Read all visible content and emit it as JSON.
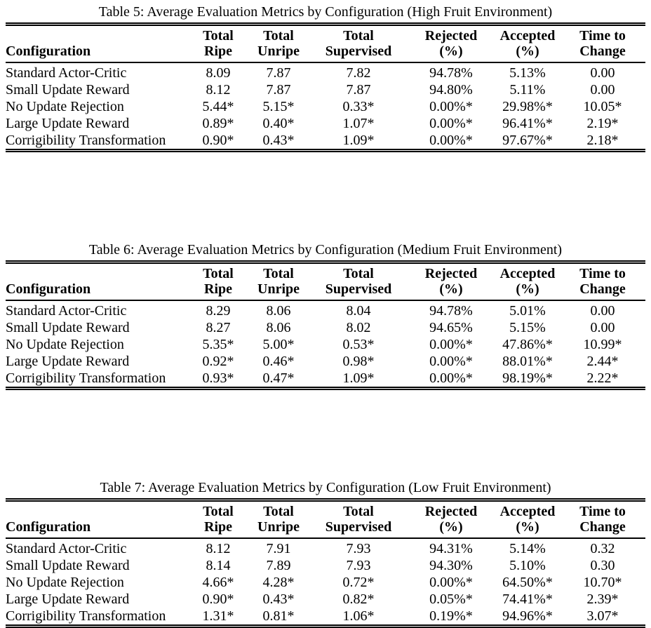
{
  "page": {
    "background_color": "#ffffff",
    "text_color": "#000000"
  },
  "headers": [
    {
      "key": "configuration",
      "top": "",
      "bottom": "Configuration"
    },
    {
      "key": "total-ripe",
      "top": "Total",
      "bottom": "Ripe"
    },
    {
      "key": "total-unripe",
      "top": "Total",
      "bottom": "Unripe"
    },
    {
      "key": "total-supervised",
      "top": "Total",
      "bottom": "Supervised"
    },
    {
      "key": "rejected-pct",
      "top": "Rejected",
      "bottom": "(%)"
    },
    {
      "key": "accepted-pct",
      "top": "Accepted",
      "bottom": "(%)"
    },
    {
      "key": "time-to-change",
      "top": "Time to",
      "bottom": "Change"
    }
  ],
  "tables": [
    {
      "caption": "Table 5: Average Evaluation Metrics by Configuration (High Fruit Environment)",
      "environment": "High Fruit Environment",
      "rows": [
        {
          "config": "Standard Actor-Critic",
          "values": [
            "8.09",
            "7.87",
            "7.82",
            "94.78%",
            "5.13%",
            "0.00"
          ]
        },
        {
          "config": "Small Update Reward",
          "values": [
            "8.12",
            "7.87",
            "7.87",
            "94.80%",
            "5.11%",
            "0.00"
          ]
        },
        {
          "config": "No Update Rejection",
          "values": [
            "5.44*",
            "5.15*",
            "0.33*",
            "0.00%*",
            "29.98%*",
            "10.05*"
          ]
        },
        {
          "config": "Large Update Reward",
          "values": [
            "0.89*",
            "0.40*",
            "1.07*",
            "0.00%*",
            "96.41%*",
            "2.19*"
          ]
        },
        {
          "config": "Corrigibility Transformation",
          "values": [
            "0.90*",
            "0.43*",
            "1.09*",
            "0.00%*",
            "97.67%*",
            "2.18*"
          ]
        }
      ]
    },
    {
      "caption": "Table 6: Average Evaluation Metrics by Configuration (Medium Fruit Environment)",
      "environment": "Medium Fruit Environment",
      "rows": [
        {
          "config": "Standard Actor-Critic",
          "values": [
            "8.29",
            "8.06",
            "8.04",
            "94.78%",
            "5.01%",
            "0.00"
          ]
        },
        {
          "config": "Small Update Reward",
          "values": [
            "8.27",
            "8.06",
            "8.02",
            "94.65%",
            "5.15%",
            "0.00"
          ]
        },
        {
          "config": "No Update Rejection",
          "values": [
            "5.35*",
            "5.00*",
            "0.53*",
            "0.00%*",
            "47.86%*",
            "10.99*"
          ]
        },
        {
          "config": "Large Update Reward",
          "values": [
            "0.92*",
            "0.46*",
            "0.98*",
            "0.00%*",
            "88.01%*",
            "2.44*"
          ]
        },
        {
          "config": "Corrigibility Transformation",
          "values": [
            "0.93*",
            "0.47*",
            "1.09*",
            "0.00%*",
            "98.19%*",
            "2.22*"
          ]
        }
      ]
    },
    {
      "caption": "Table 7: Average Evaluation Metrics by Configuration (Low Fruit Environment)",
      "environment": "Low Fruit Environment",
      "rows": [
        {
          "config": "Standard Actor-Critic",
          "values": [
            "8.12",
            "7.91",
            "7.93",
            "94.31%",
            "5.14%",
            "0.32"
          ]
        },
        {
          "config": "Small Update Reward",
          "values": [
            "8.14",
            "7.89",
            "7.93",
            "94.30%",
            "5.10%",
            "0.30"
          ]
        },
        {
          "config": "No Update Rejection",
          "values": [
            "4.66*",
            "4.28*",
            "0.72*",
            "0.00%*",
            "64.50%*",
            "10.70*"
          ]
        },
        {
          "config": "Large Update Reward",
          "values": [
            "0.90*",
            "0.43*",
            "0.82*",
            "0.05%*",
            "74.41%*",
            "2.39*"
          ]
        },
        {
          "config": "Corrigibility Transformation",
          "values": [
            "1.31*",
            "0.81*",
            "1.06*",
            "0.19%*",
            "94.96%*",
            "3.07*"
          ]
        }
      ]
    }
  ]
}
